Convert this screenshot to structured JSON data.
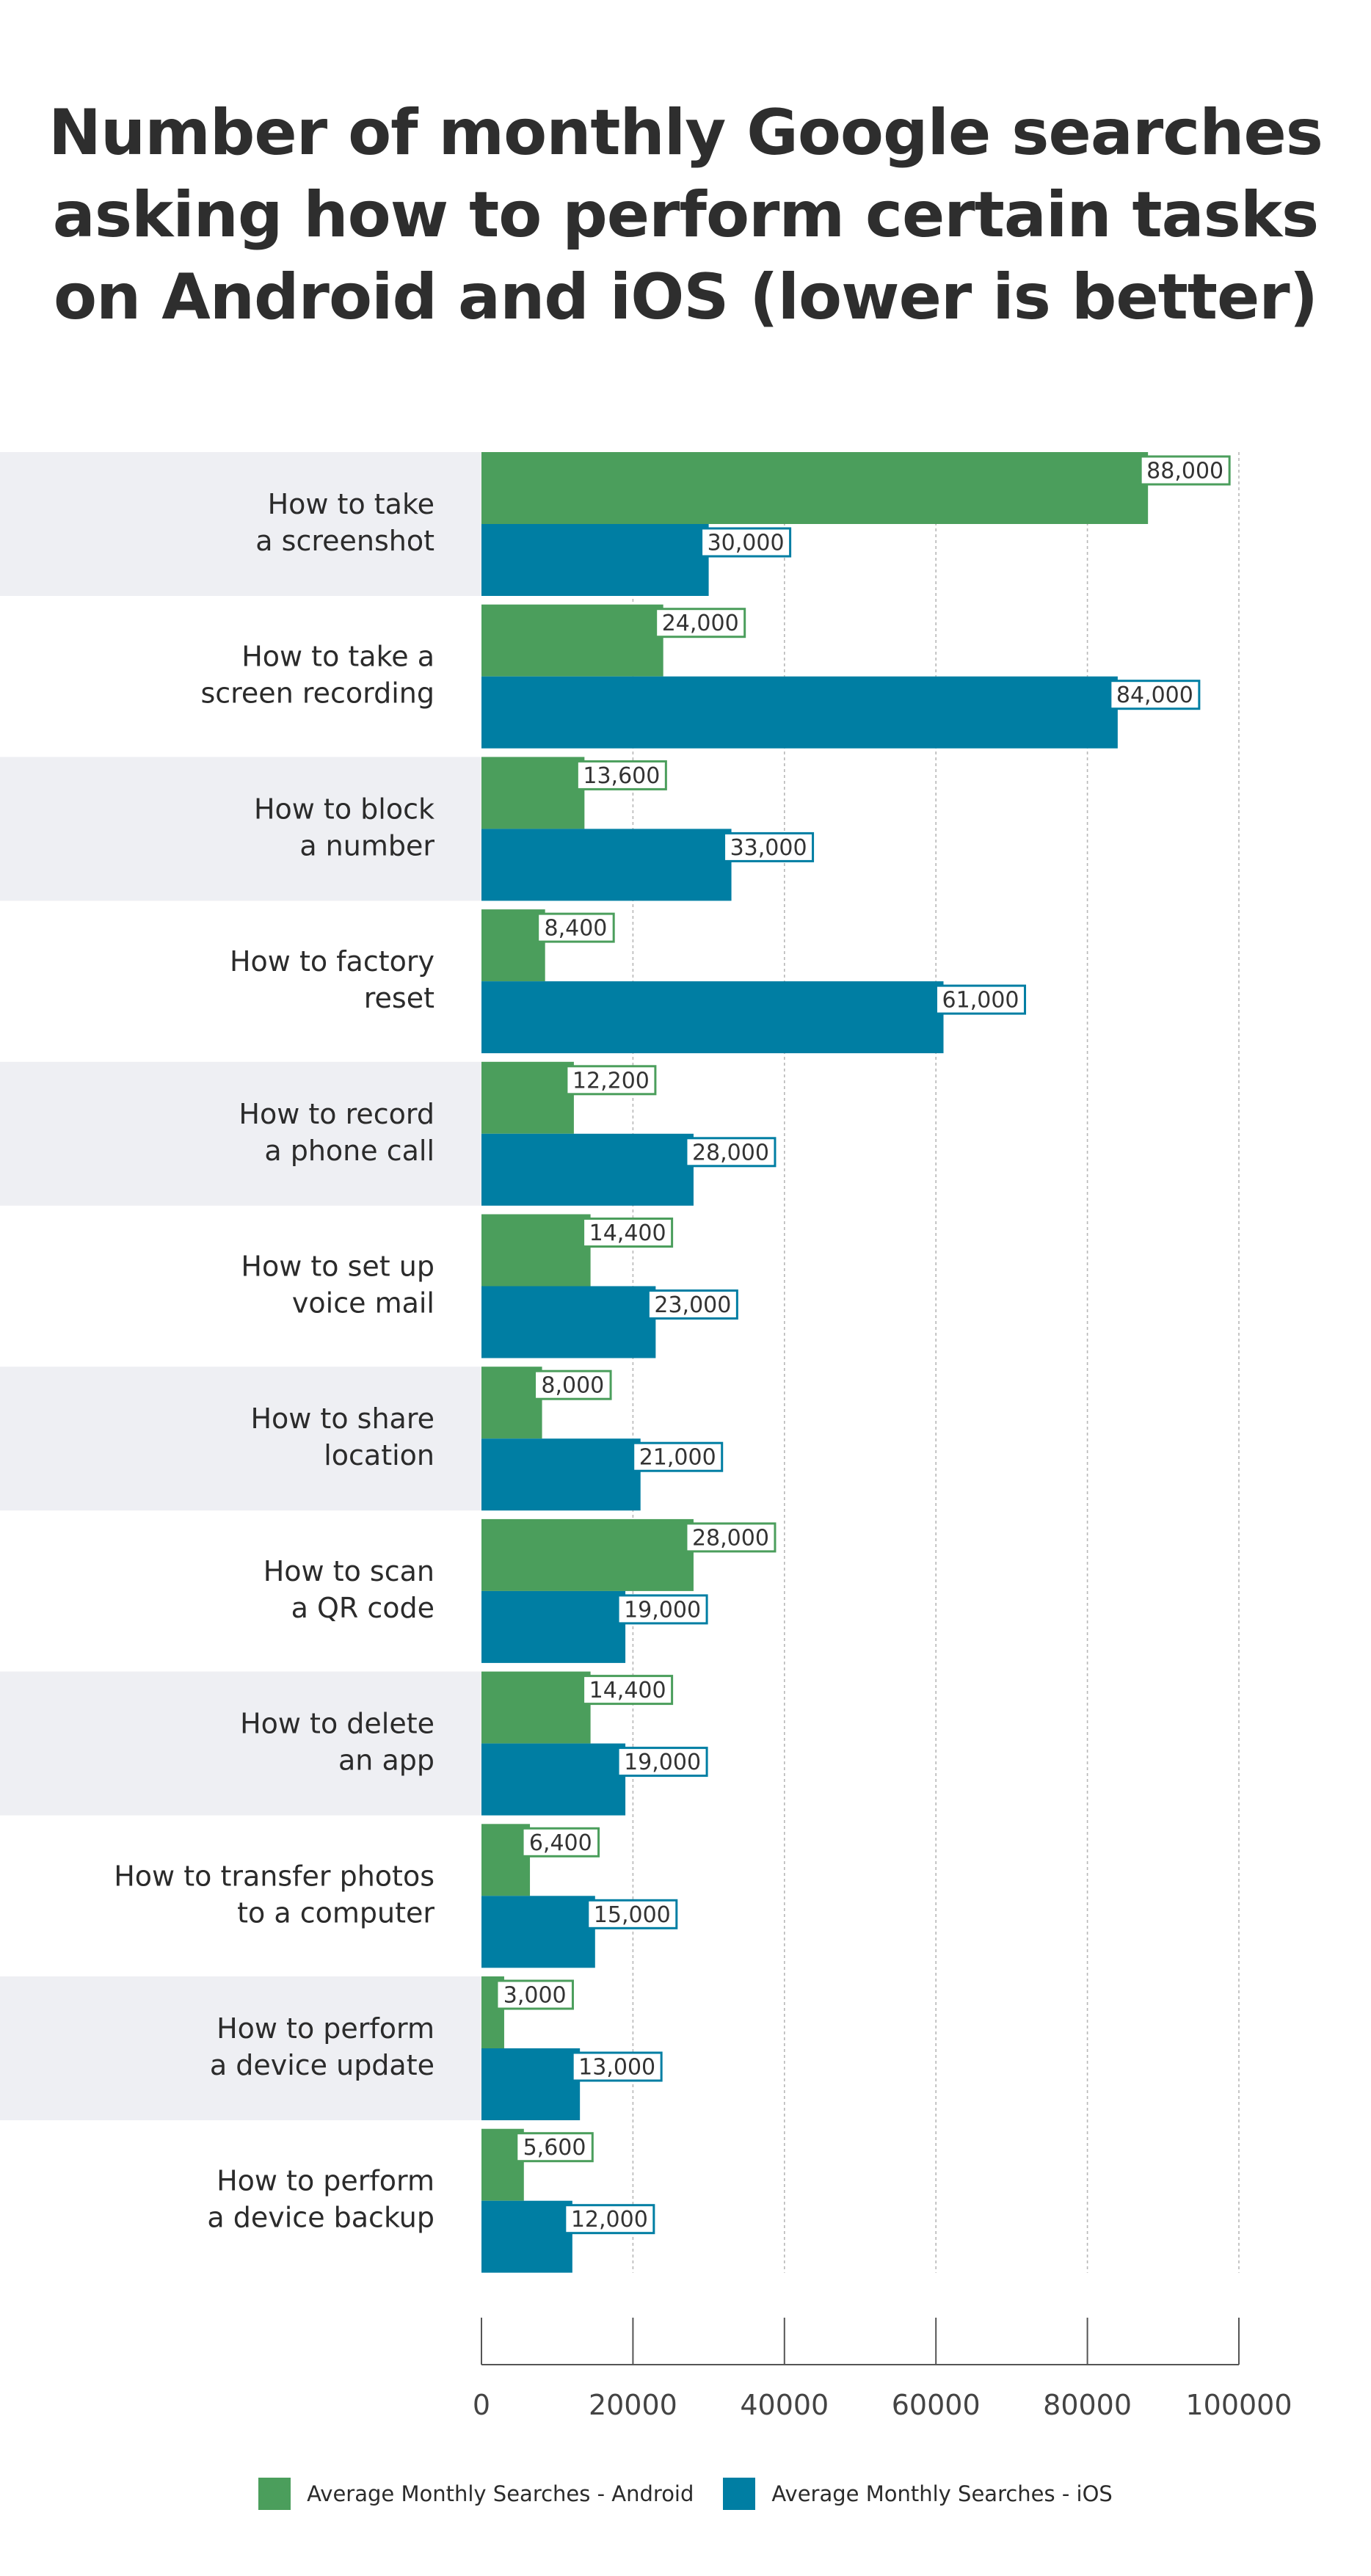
{
  "title_lines": [
    "Number of monthly Google searches",
    "asking how to perform certain tasks",
    "on Android and iOS (lower is better)"
  ],
  "colors": {
    "android": "#4b9e5c",
    "ios": "#007ea3",
    "row_band": "#eeeff3",
    "grid": "#b8b8b8",
    "axis": "#555555"
  },
  "chart_data": {
    "type": "bar",
    "orientation": "horizontal",
    "title": "Number of monthly Google searches asking how to perform certain tasks on Android and iOS (lower is better)",
    "categories": [
      [
        "How to take",
        "a screenshot"
      ],
      [
        "How to take a",
        "screen recording"
      ],
      [
        "How to block",
        "a number"
      ],
      [
        "How to factory",
        "reset"
      ],
      [
        "How to record",
        "a phone call"
      ],
      [
        "How to set up",
        "voice mail"
      ],
      [
        "How to share",
        "location"
      ],
      [
        "How to scan",
        "a QR code"
      ],
      [
        "How to delete",
        "an app"
      ],
      [
        "How to transfer photos",
        "to a computer"
      ],
      [
        "How to perform",
        "a device update"
      ],
      [
        "How to perform",
        "a device backup"
      ]
    ],
    "series": [
      {
        "name": "Average Monthly Searches - Android",
        "color": "#4b9e5c",
        "values": [
          88000,
          24000,
          13600,
          8400,
          12200,
          14400,
          8000,
          28000,
          14400,
          6400,
          3000,
          5600
        ],
        "labels": [
          "88,000",
          "24,000",
          "13,600",
          "8,400",
          "12,200",
          "14,400",
          "8,000",
          "28,000",
          "14,400",
          "6,400",
          "3,000",
          "5,600"
        ]
      },
      {
        "name": "Average Monthly Searches - iOS",
        "color": "#007ea3",
        "values": [
          30000,
          84000,
          33000,
          61000,
          28000,
          23000,
          21000,
          19000,
          19000,
          15000,
          13000,
          12000
        ],
        "labels": [
          "30,000",
          "84,000",
          "33,000",
          "61,000",
          "28,000",
          "23,000",
          "21,000",
          "19,000",
          "19,000",
          "15,000",
          "13,000",
          "12,000"
        ]
      }
    ],
    "xlim": [
      0,
      100000
    ],
    "x_ticks": [
      0,
      20000,
      40000,
      60000,
      80000,
      100000
    ],
    "x_tick_labels": [
      "0",
      "20000",
      "40000",
      "60000",
      "80000",
      "100000"
    ],
    "grid": "vertical dashed",
    "legend_position": "bottom-center"
  }
}
